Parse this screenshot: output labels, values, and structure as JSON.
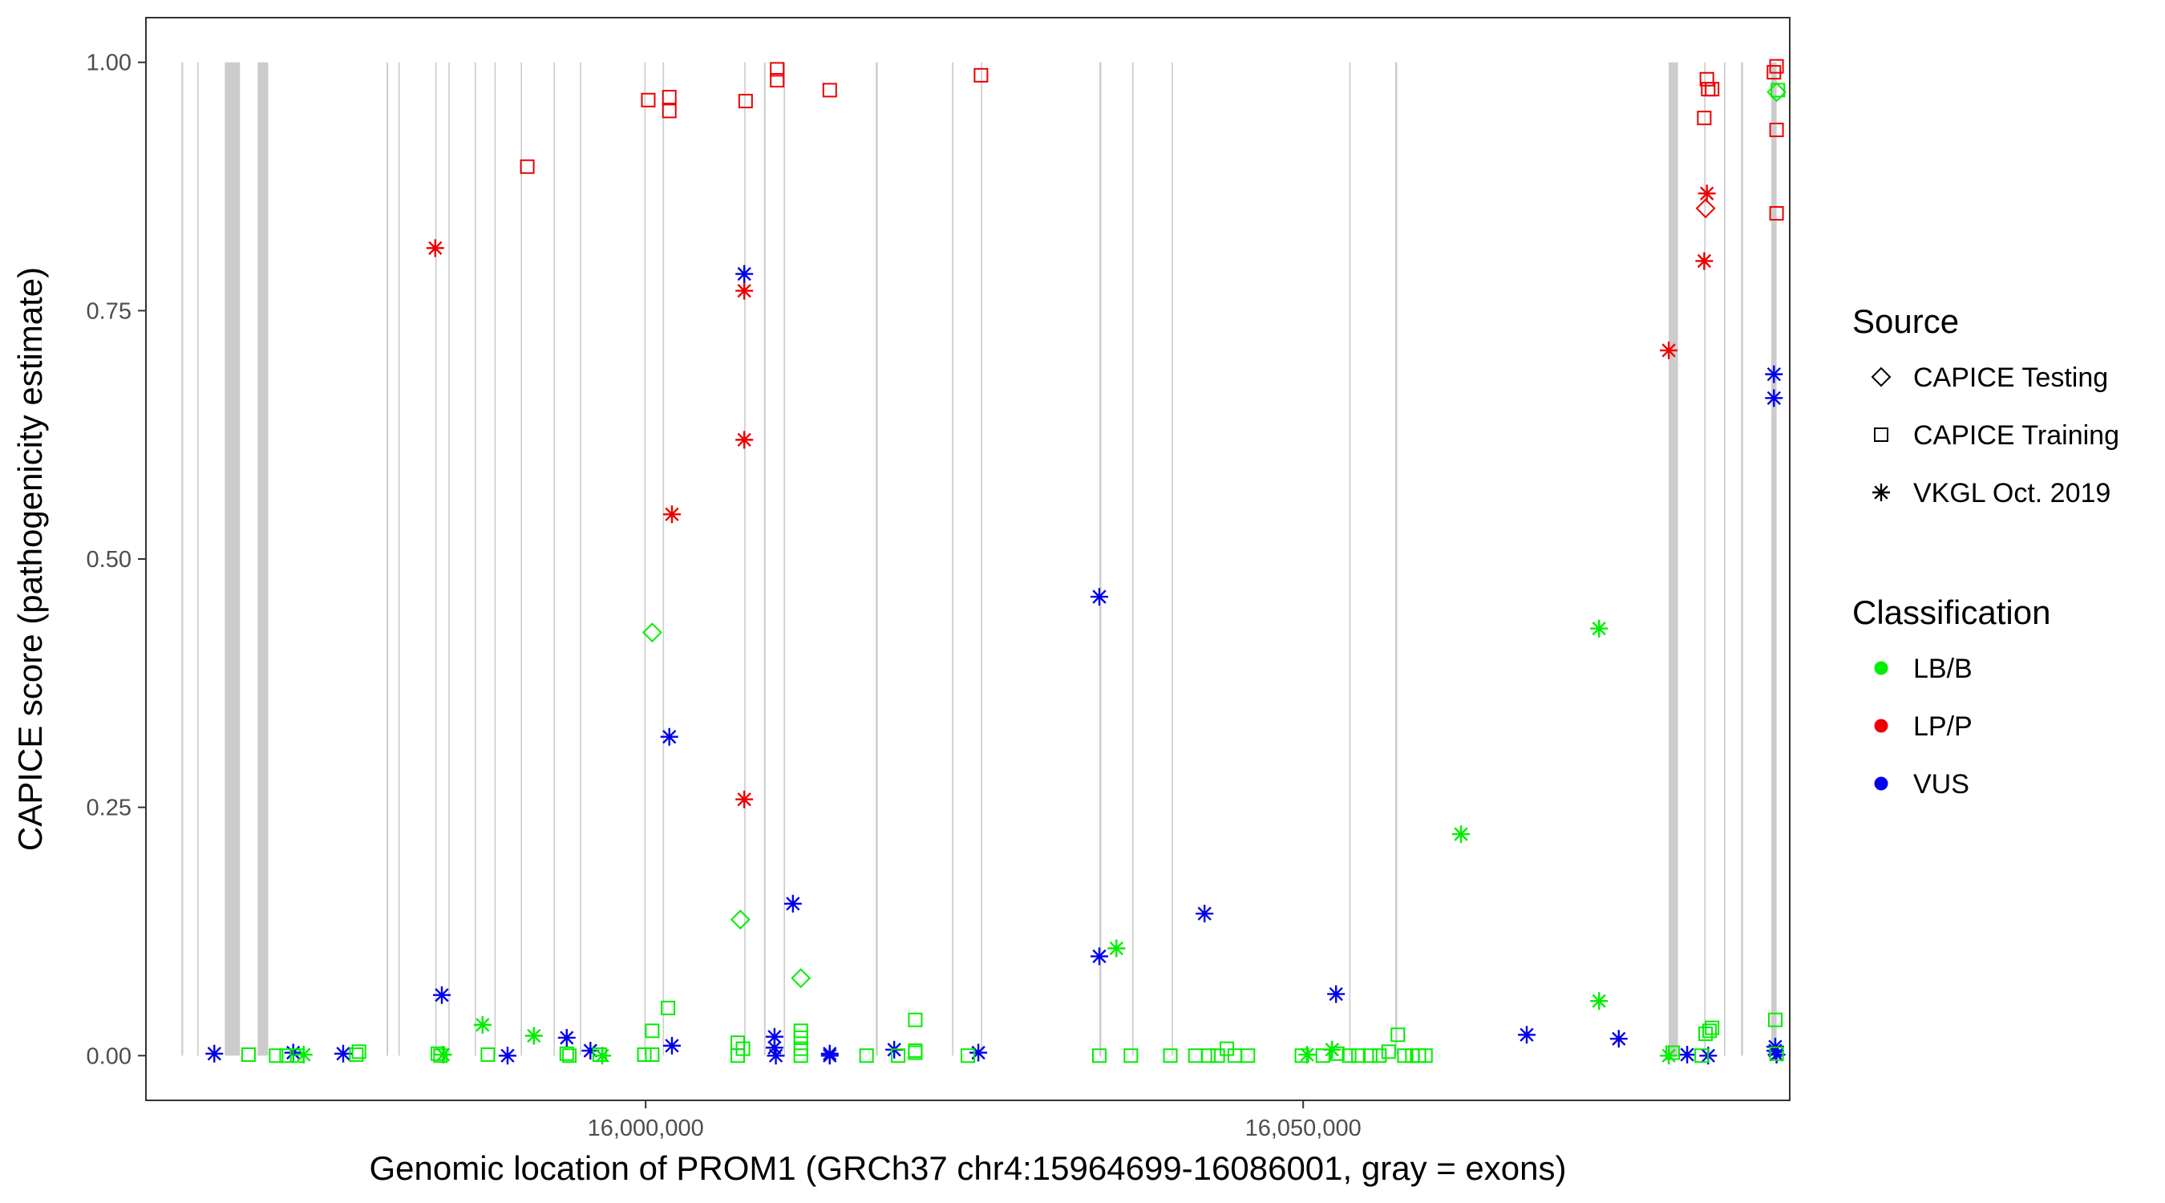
{
  "chart_data": {
    "type": "scatter",
    "title": "",
    "xlabel": "Genomic location of PROM1 (GRCh37 chr4:15964699-16086001, gray = exons)",
    "ylabel": "CAPICE score (pathogenicity estimate)",
    "xlim": [
      15962000,
      16087000
    ],
    "ylim": [
      -0.045,
      1.045
    ],
    "xticks": [
      16000000,
      16050000
    ],
    "xtick_labels": [
      "16,000,000",
      "16,050,000"
    ],
    "yticks": [
      0,
      0.25,
      0.5,
      0.75,
      1.0
    ],
    "ytick_labels": [
      "0.00",
      "0.25",
      "0.50",
      "0.75",
      "1.00"
    ],
    "grid": false,
    "exons": [
      [
        15964700,
        15964830
      ],
      [
        15965900,
        15966000
      ],
      [
        15968000,
        15969150
      ],
      [
        15970500,
        15971300
      ],
      [
        15980300,
        15980420
      ],
      [
        15981200,
        15981300
      ],
      [
        15984000,
        15984100
      ],
      [
        15985000,
        15985100
      ],
      [
        15987000,
        15987100
      ],
      [
        15988500,
        15988600
      ],
      [
        15990500,
        15990600
      ],
      [
        15993000,
        15993100
      ],
      [
        15995000,
        15995100
      ],
      [
        15999900,
        16000000
      ],
      [
        16001300,
        16001400
      ],
      [
        16007500,
        16007600
      ],
      [
        16009000,
        16009120
      ],
      [
        16010500,
        16010600
      ],
      [
        16017500,
        16017650
      ],
      [
        16023300,
        16023400
      ],
      [
        16025500,
        16025600
      ],
      [
        16034500,
        16034650
      ],
      [
        16037000,
        16037100
      ],
      [
        16040000,
        16040100
      ],
      [
        16053500,
        16053600
      ],
      [
        16057000,
        16057150
      ],
      [
        16077800,
        16078500
      ],
      [
        16080500,
        16080600
      ],
      [
        16082000,
        16082100
      ],
      [
        16083300,
        16083450
      ],
      [
        16085600,
        16086000
      ]
    ],
    "legend": {
      "source_title": "Source",
      "source_items": [
        {
          "label": "CAPICE Testing",
          "shape": "diamond"
        },
        {
          "label": "CAPICE Training",
          "shape": "square"
        },
        {
          "label": "VKGL Oct. 2019",
          "shape": "asterisk"
        }
      ],
      "class_title": "Classification",
      "class_items": [
        {
          "label": "LB/B",
          "color": "#00ee00"
        },
        {
          "label": "LP/P",
          "color": "#ee0000"
        },
        {
          "label": "VUS",
          "color": "#0000ee"
        }
      ]
    },
    "colors": {
      "LB/B": "#00ee00",
      "LP/P": "#ee0000",
      "VUS": "#0000ee"
    },
    "series": [
      {
        "name": "LP/P",
        "points": [
          [
            15984000,
            0.813,
            "asterisk"
          ],
          [
            15991000,
            0.895,
            "square"
          ],
          [
            16002000,
            0.545,
            "asterisk"
          ],
          [
            16000200,
            0.962,
            "square"
          ],
          [
            16001800,
            0.965,
            "square"
          ],
          [
            16001800,
            0.951,
            "square"
          ],
          [
            16007500,
            0.77,
            "asterisk"
          ],
          [
            16007500,
            0.62,
            "asterisk"
          ],
          [
            16007500,
            0.258,
            "asterisk"
          ],
          [
            16007600,
            0.961,
            "square"
          ],
          [
            16010000,
            0.993,
            "square"
          ],
          [
            16010000,
            0.982,
            "square"
          ],
          [
            16014000,
            0.972,
            "square"
          ],
          [
            16025500,
            0.987,
            "square"
          ],
          [
            16077800,
            0.71,
            "asterisk"
          ],
          [
            16080500,
            0.8,
            "asterisk"
          ],
          [
            16080700,
            0.868,
            "asterisk"
          ],
          [
            16080600,
            0.853,
            "diamond"
          ],
          [
            16080500,
            0.944,
            "square"
          ],
          [
            16080700,
            0.983,
            "square"
          ],
          [
            16080800,
            0.973,
            "square"
          ],
          [
            16081100,
            0.973,
            "square"
          ],
          [
            16085800,
            0.99,
            "square"
          ],
          [
            16086000,
            0.996,
            "square"
          ],
          [
            16086000,
            0.932,
            "square"
          ],
          [
            16086000,
            0.848,
            "square"
          ]
        ]
      },
      {
        "name": "VUS",
        "points": [
          [
            15967200,
            0.002,
            "asterisk"
          ],
          [
            15973200,
            0.003,
            "asterisk"
          ],
          [
            15977000,
            0.002,
            "asterisk"
          ],
          [
            15984500,
            0.061,
            "asterisk"
          ],
          [
            15989500,
            0.0,
            "asterisk"
          ],
          [
            15994000,
            0.018,
            "asterisk"
          ],
          [
            15995800,
            0.005,
            "asterisk"
          ],
          [
            16001800,
            0.321,
            "asterisk"
          ],
          [
            16002000,
            0.01,
            "asterisk"
          ],
          [
            16007500,
            0.787,
            "asterisk"
          ],
          [
            16009800,
            0.019,
            "asterisk"
          ],
          [
            16009800,
            0.008,
            "asterisk"
          ],
          [
            16009900,
            0.0,
            "asterisk"
          ],
          [
            16011200,
            0.153,
            "asterisk"
          ],
          [
            16014000,
            0.002,
            "asterisk"
          ],
          [
            16014000,
            0.0,
            "asterisk"
          ],
          [
            16018900,
            0.006,
            "asterisk"
          ],
          [
            16025300,
            0.003,
            "asterisk"
          ],
          [
            16034500,
            0.462,
            "asterisk"
          ],
          [
            16034500,
            0.1,
            "asterisk"
          ],
          [
            16042500,
            0.143,
            "asterisk"
          ],
          [
            16052500,
            0.062,
            "asterisk"
          ],
          [
            16067000,
            0.021,
            "asterisk"
          ],
          [
            16074000,
            0.017,
            "asterisk"
          ],
          [
            16079200,
            0.001,
            "asterisk"
          ],
          [
            16080800,
            0.0,
            "asterisk"
          ],
          [
            16085800,
            0.686,
            "asterisk"
          ],
          [
            16085800,
            0.662,
            "asterisk"
          ],
          [
            16085900,
            0.009,
            "asterisk"
          ],
          [
            16085900,
            0.005,
            "asterisk"
          ],
          [
            16086000,
            0.001,
            "asterisk"
          ]
        ]
      },
      {
        "name": "LB/B",
        "points": [
          [
            15969800,
            0.001,
            "square"
          ],
          [
            15971900,
            0.0,
            "square"
          ],
          [
            15972700,
            0.0,
            "square"
          ],
          [
            15973500,
            0.0,
            "square"
          ],
          [
            15974000,
            0.001,
            "asterisk"
          ],
          [
            15978000,
            0.001,
            "square"
          ],
          [
            15978200,
            0.004,
            "square"
          ],
          [
            15984200,
            0.002,
            "square"
          ],
          [
            15984400,
            0.0,
            "square"
          ],
          [
            15984600,
            0.001,
            "asterisk"
          ],
          [
            15987600,
            0.031,
            "asterisk"
          ],
          [
            15988000,
            0.001,
            "square"
          ],
          [
            15991500,
            0.02,
            "asterisk"
          ],
          [
            15994000,
            0.002,
            "square"
          ],
          [
            15994200,
            0.0,
            "square"
          ],
          [
            15996500,
            0.001,
            "square"
          ],
          [
            15996700,
            0.0,
            "asterisk"
          ],
          [
            15999900,
            0.001,
            "square"
          ],
          [
            16000500,
            0.001,
            "square"
          ],
          [
            16000500,
            0.025,
            "square"
          ],
          [
            16000500,
            0.426,
            "diamond"
          ],
          [
            16001700,
            0.048,
            "square"
          ],
          [
            16007000,
            0.013,
            "square"
          ],
          [
            16007000,
            0.0,
            "square"
          ],
          [
            16007400,
            0.007,
            "square"
          ],
          [
            16007200,
            0.137,
            "diamond"
          ],
          [
            16011800,
            0.078,
            "diamond"
          ],
          [
            16011800,
            0.025,
            "square"
          ],
          [
            16011800,
            0.018,
            "square"
          ],
          [
            16011800,
            0.007,
            "square"
          ],
          [
            16011800,
            0.0,
            "square"
          ],
          [
            16016800,
            0.0,
            "square"
          ],
          [
            16019200,
            0.0,
            "square"
          ],
          [
            16020500,
            0.036,
            "square"
          ],
          [
            16020500,
            0.005,
            "square"
          ],
          [
            16020500,
            0.003,
            "square"
          ],
          [
            16024500,
            0.0,
            "square"
          ],
          [
            16034500,
            0.0,
            "square"
          ],
          [
            16035800,
            0.108,
            "asterisk"
          ],
          [
            16036900,
            0.0,
            "square"
          ],
          [
            16039900,
            0.0,
            "square"
          ],
          [
            16041800,
            0.0,
            "square"
          ],
          [
            16042800,
            0.0,
            "square"
          ],
          [
            16043500,
            0.0,
            "square"
          ],
          [
            16044200,
            0.007,
            "square"
          ],
          [
            16044800,
            0.0,
            "square"
          ],
          [
            16045800,
            0.0,
            "square"
          ],
          [
            16049900,
            0.0,
            "square"
          ],
          [
            16050300,
            0.001,
            "asterisk"
          ],
          [
            16051500,
            0.0,
            "square"
          ],
          [
            16052200,
            0.006,
            "asterisk"
          ],
          [
            16052600,
            0.002,
            "square"
          ],
          [
            16053500,
            0.0,
            "square"
          ],
          [
            16054200,
            0.0,
            "square"
          ],
          [
            16055100,
            0.0,
            "square"
          ],
          [
            16055800,
            0.0,
            "square"
          ],
          [
            16056500,
            0.004,
            "square"
          ],
          [
            16057200,
            0.021,
            "square"
          ],
          [
            16057700,
            0.0,
            "square"
          ],
          [
            16058300,
            0.0,
            "square"
          ],
          [
            16058800,
            0.0,
            "square"
          ],
          [
            16059300,
            0.0,
            "square"
          ],
          [
            16062000,
            0.223,
            "asterisk"
          ],
          [
            16072500,
            0.43,
            "asterisk"
          ],
          [
            16072500,
            0.055,
            "asterisk"
          ],
          [
            16077800,
            0.0,
            "asterisk"
          ],
          [
            16078100,
            0.003,
            "square"
          ],
          [
            16080300,
            0.0,
            "square"
          ],
          [
            16080600,
            0.022,
            "square"
          ],
          [
            16080900,
            0.025,
            "square"
          ],
          [
            16081100,
            0.028,
            "square"
          ],
          [
            16085900,
            0.036,
            "square"
          ],
          [
            16086000,
            0.97,
            "diamond"
          ],
          [
            16086100,
            0.972,
            "square"
          ],
          [
            16086000,
            0.002,
            "square"
          ]
        ]
      }
    ]
  }
}
